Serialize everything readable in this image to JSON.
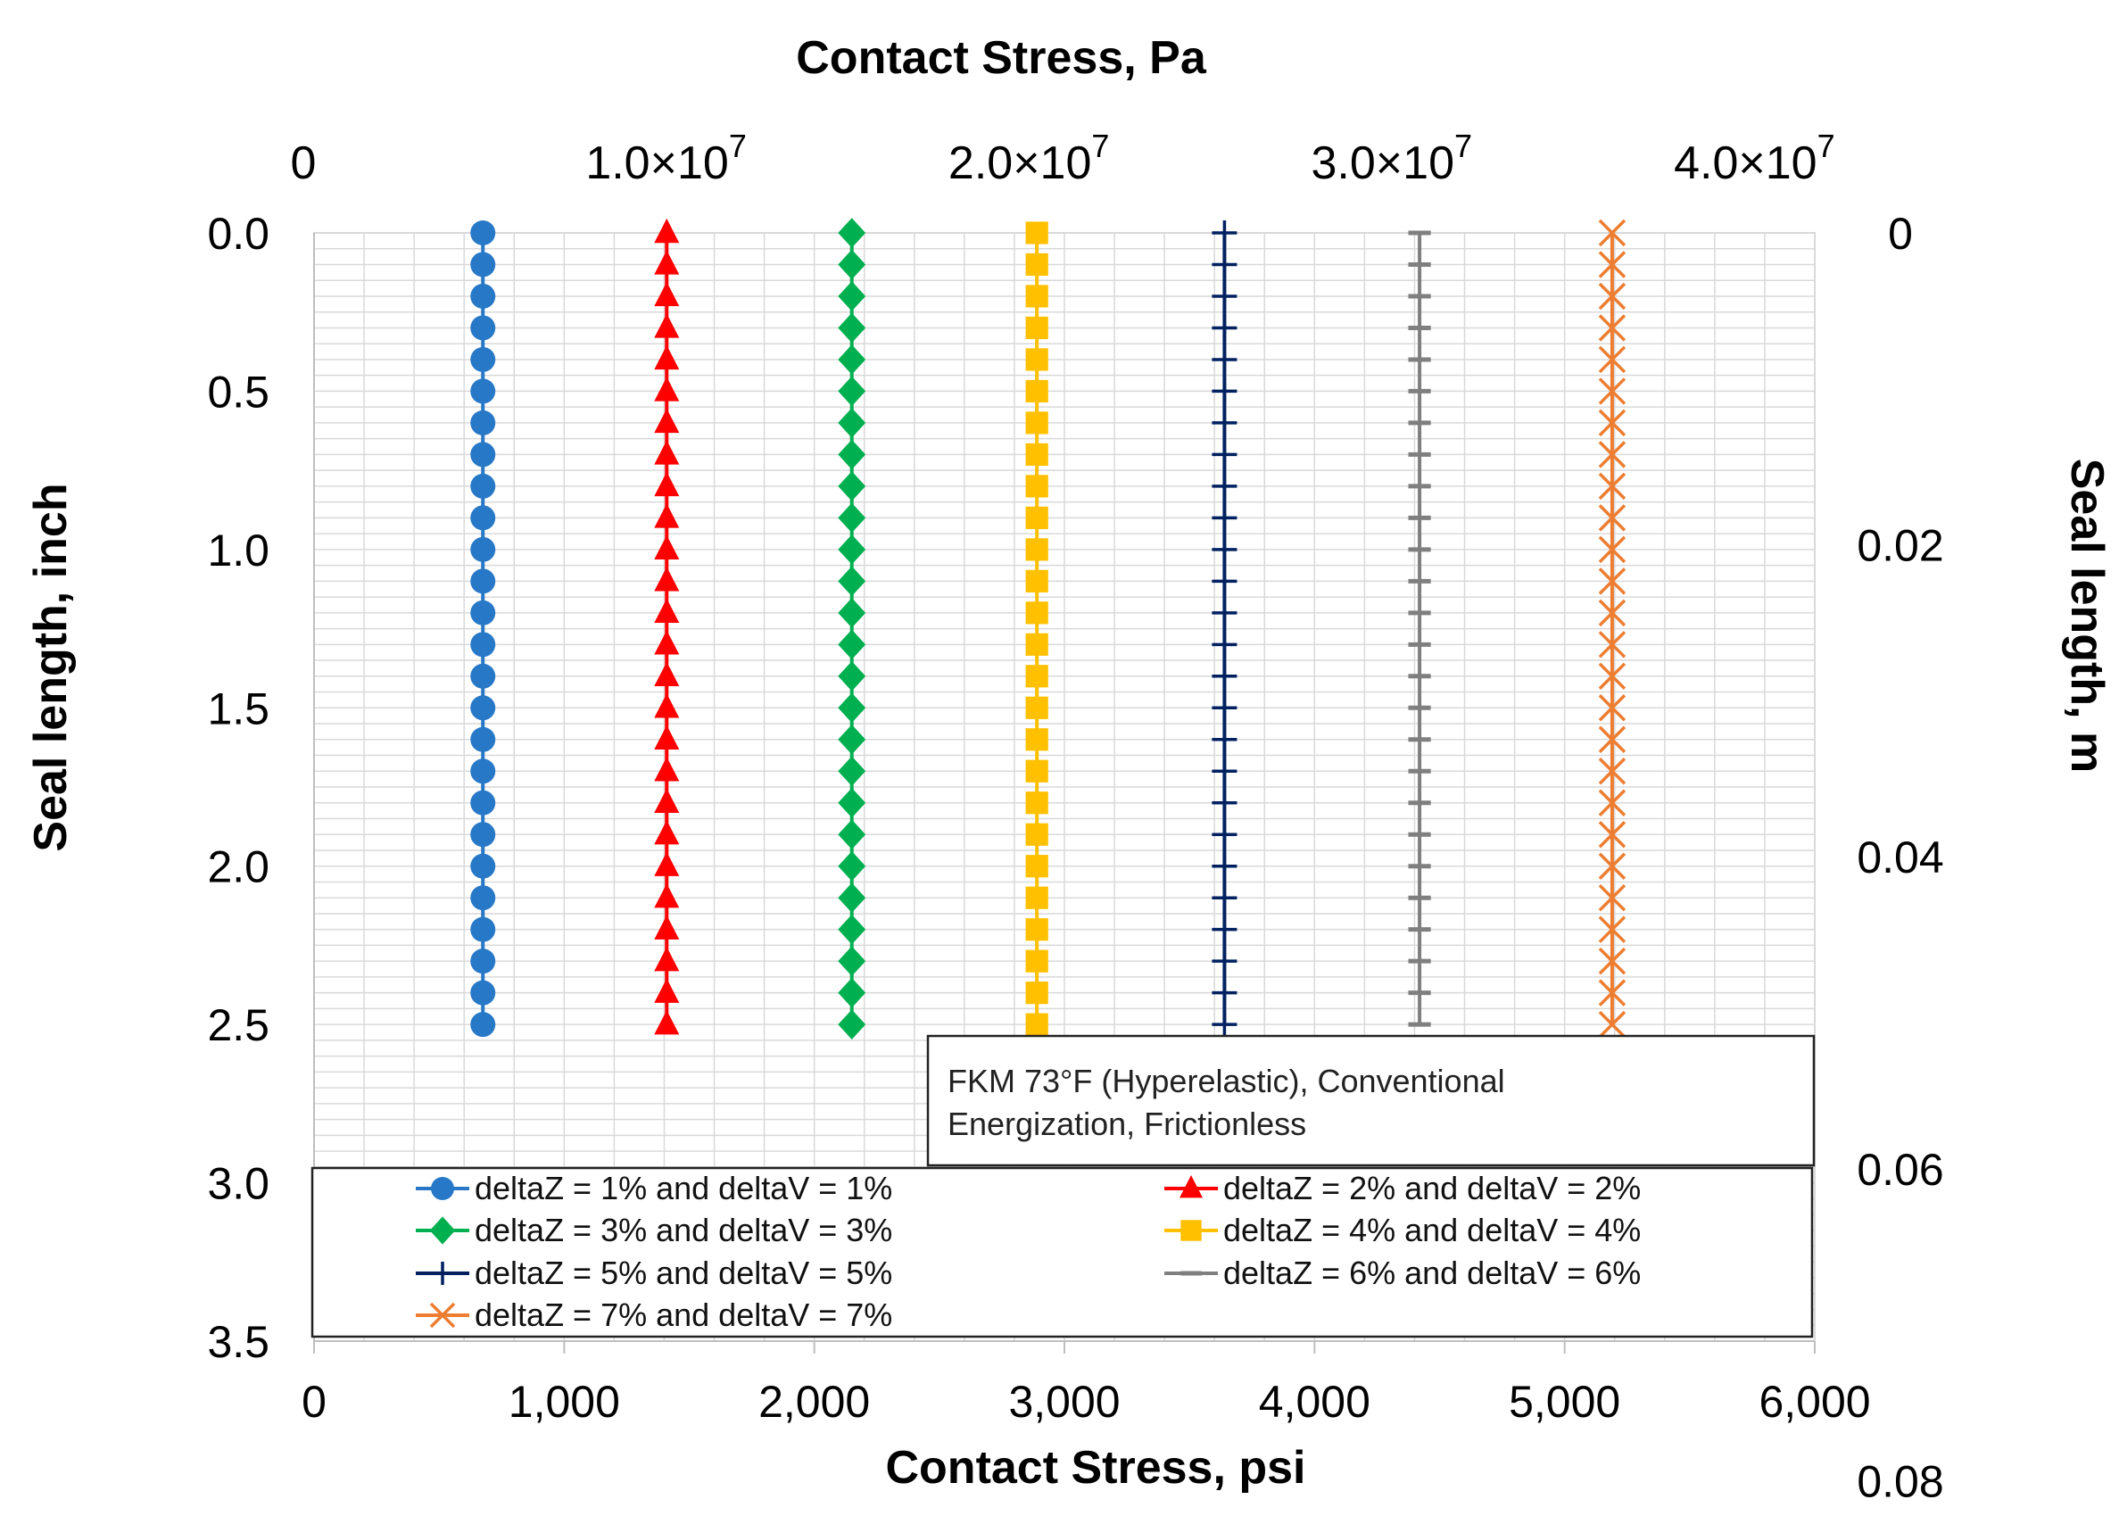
{
  "chart_data": {
    "type": "line",
    "x_axis_bottom": {
      "label": "Contact Stress, psi",
      "range": [
        0,
        6000
      ],
      "ticks": [
        0,
        1000,
        2000,
        3000,
        4000,
        5000,
        6000
      ],
      "tick_labels": [
        "0",
        "1,000",
        "2,000",
        "3,000",
        "4,000",
        "5,000",
        "6,000"
      ]
    },
    "x_axis_top": {
      "label": "Contact Stress, Pa",
      "tick_values": [
        0,
        10000000,
        20000000,
        30000000,
        40000000
      ],
      "tick_mantissas": [
        "0",
        "1.0×10",
        "2.0×10",
        "3.0×10",
        "4.0×10"
      ],
      "tick_exponents": [
        "",
        "7",
        "7",
        "7",
        "7"
      ]
    },
    "y_axis_left": {
      "label": "Seal length, inch",
      "range": [
        0,
        3.5
      ],
      "inverted": true,
      "ticks": [
        0,
        0.5,
        1.0,
        1.5,
        2.0,
        2.5,
        3.0,
        3.5
      ],
      "tick_labels": [
        "0.0",
        "0.5",
        "1.0",
        "1.5",
        "2.0",
        "2.5",
        "3.0",
        "3.5"
      ]
    },
    "y_axis_right": {
      "label": "Seal length, m",
      "tick_values": [
        0,
        0.02,
        0.04,
        0.06,
        0.08
      ],
      "tick_labels": [
        "0",
        "0.02",
        "0.04",
        "0.06",
        "0.08"
      ]
    },
    "y_values": [
      0.0,
      0.1,
      0.2,
      0.3,
      0.4,
      0.5,
      0.6,
      0.7,
      0.8,
      0.9,
      1.0,
      1.1,
      1.2,
      1.3,
      1.4,
      1.5,
      1.6,
      1.7,
      1.8,
      1.9,
      2.0,
      2.1,
      2.2,
      2.3,
      2.4,
      2.5
    ],
    "series": [
      {
        "name": "deltaZ = 1%  and deltaV = 1%",
        "color": "#2878c8",
        "marker": "circle",
        "stress_psi": 675
      },
      {
        "name": "deltaZ = 2%  and deltaV = 2%",
        "color": "#ff0000",
        "marker": "triangle",
        "stress_psi": 1410
      },
      {
        "name": "deltaZ = 3%  and deltaV = 3%",
        "color": "#00b050",
        "marker": "diamond",
        "stress_psi": 2150
      },
      {
        "name": "deltaZ = 4%  and deltaV = 4%",
        "color": "#ffc000",
        "marker": "square",
        "stress_psi": 2890
      },
      {
        "name": "deltaZ = 5%  and deltaV = 5%",
        "color": "#002060",
        "marker": "plus",
        "stress_psi": 3640
      },
      {
        "name": "deltaZ = 6%  and deltaV = 6%",
        "color": "#7f7f7f",
        "marker": "dash",
        "stress_psi": 4420
      },
      {
        "name": "deltaZ = 7%  and deltaV = 7%",
        "color": "#ed7d31",
        "marker": "x",
        "stress_psi": 5190
      }
    ],
    "annotation": {
      "line1": "FKM 73°F (Hyperelastic), Conventional",
      "line2": "Energization, Frictionless"
    },
    "grid": true,
    "legend_placement": "bottom inside plot"
  }
}
